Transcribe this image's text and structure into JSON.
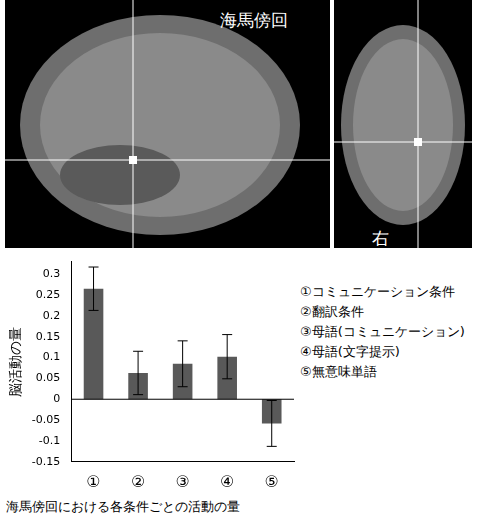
{
  "header": {
    "title": "海馬傍回",
    "side_label": "右"
  },
  "chart_data": {
    "type": "bar",
    "categories": [
      "①",
      "②",
      "③",
      "④",
      "⑤"
    ],
    "values": [
      0.265,
      0.063,
      0.085,
      0.102,
      -0.058
    ],
    "errors": [
      0.052,
      0.052,
      0.055,
      0.053,
      0.055
    ],
    "color": "#595959",
    "y_label": "脳活動の量",
    "ylim": [
      -0.15,
      0.33
    ],
    "yticks": [
      -0.15,
      -0.1,
      -0.05,
      0,
      0.05,
      0.1,
      0.15,
      0.2,
      0.25,
      0.3
    ],
    "grid": false,
    "annotations": [
      "①コミュニケーション条件",
      "②翻訳条件",
      "③母語(コミュニケーション)",
      "④母語(文字提示)",
      "⑤無意味単語"
    ],
    "caption": "海馬傍回における各条件ごとの活動の量"
  }
}
